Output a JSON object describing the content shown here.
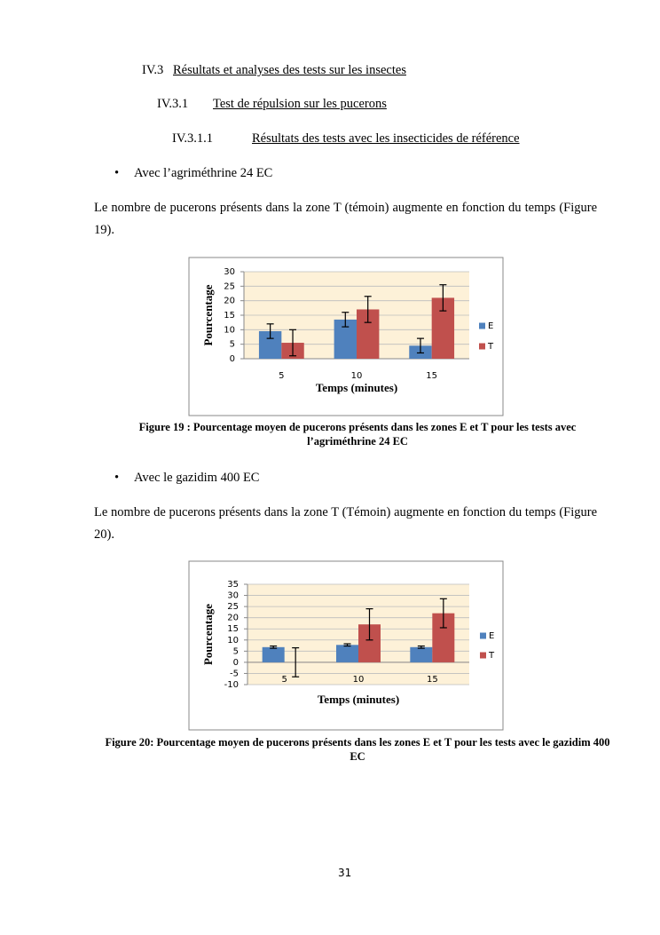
{
  "headings": [
    {
      "number": "IV.3",
      "title": "Résultats et analyses des tests sur les insectes"
    },
    {
      "number": "IV.3.1",
      "title": "Test de répulsion sur les pucerons"
    },
    {
      "number": "IV.3.1.1",
      "title": "Résultats des tests avec les insecticides de référence"
    }
  ],
  "bullets": [
    "Avec l’agriméthrine 24 EC",
    "Avec le gazidim 400 EC"
  ],
  "paragraphs": [
    "Le nombre de pucerons présents dans la zone T (témoin) augmente en fonction du temps (Figure 19).",
    "Le nombre de pucerons présents dans la zone T (Témoin) augmente en fonction du temps (Figure 20)."
  ],
  "captions": [
    "Figure 19 : Pourcentage moyen de pucerons présents dans les zones E et T pour les tests avec l’agriméthrine 24 EC",
    "Figure 20: Pourcentage moyen de pucerons présents dans les zones E et T pour les tests avec le gazidim 400 EC"
  ],
  "page_number": "31",
  "chart_data": [
    {
      "type": "bar",
      "xlabel": "Temps (minutes)",
      "ylabel": "Pourcentage",
      "categories": [
        "5",
        "10",
        "15"
      ],
      "series": [
        {
          "name": "E",
          "color": "#4f81bd",
          "values": [
            9.5,
            13.5,
            4.5
          ],
          "errors": [
            2.5,
            2.5,
            2.5
          ]
        },
        {
          "name": "T",
          "color": "#c0504d",
          "values": [
            5.5,
            17,
            21
          ],
          "errors": [
            4.5,
            4.5,
            4.5
          ]
        }
      ],
      "ylim": [
        0,
        30
      ],
      "yticks": [
        0,
        5,
        10,
        15,
        20,
        25,
        30
      ],
      "grid": true,
      "legend": "right"
    },
    {
      "type": "bar",
      "xlabel": "Temps (minutes)",
      "ylabel": "Pourcentage",
      "categories": [
        "5",
        "10",
        "15"
      ],
      "series": [
        {
          "name": "E",
          "color": "#4f81bd",
          "values": [
            6.8,
            7.8,
            6.8
          ],
          "errors": [
            0.5,
            0.5,
            0.5
          ]
        },
        {
          "name": "T",
          "color": "#c0504d",
          "values": [
            0,
            17,
            22
          ],
          "errors": [
            6.5,
            7,
            6.5
          ]
        }
      ],
      "ylim": [
        -10,
        35
      ],
      "yticks": [
        -10,
        -5,
        0,
        5,
        10,
        15,
        20,
        25,
        30,
        35
      ],
      "grid": true,
      "legend": "right"
    }
  ]
}
